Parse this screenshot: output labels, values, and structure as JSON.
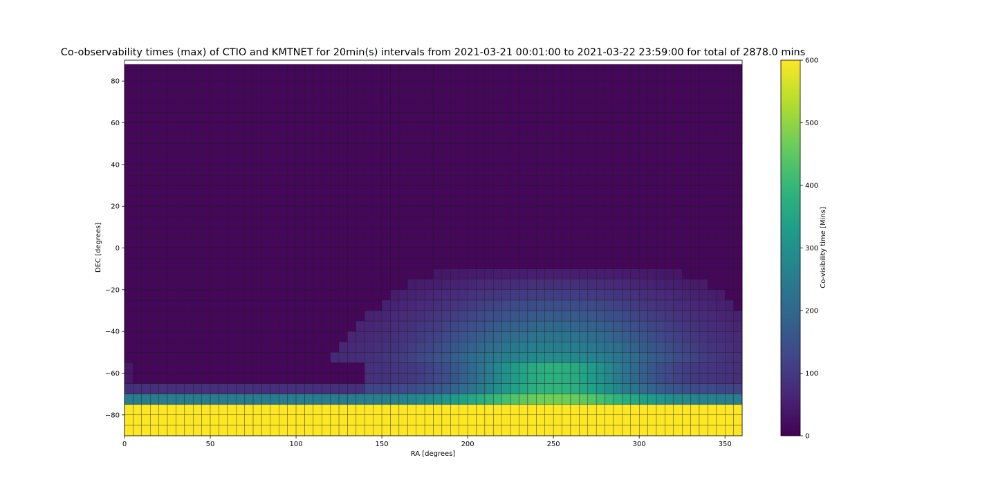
{
  "chart_data": {
    "type": "heatmap",
    "title": "Co-observability times (max) of CTIO and KMTNET for 20min(s) intervals from  2021-03-21 00:01:00  to  2021-03-22 23:59:00  for total of 2878.0 mins",
    "xlabel": "RA [degrees]",
    "ylabel": "DEC [degrees]",
    "colorbar_label": "Co-visibility time [Mins]",
    "colormap": "viridis",
    "xlim": [
      0,
      360
    ],
    "ylim": [
      -90,
      90
    ],
    "xticks": [
      0,
      50,
      100,
      150,
      200,
      250,
      300,
      350
    ],
    "yticks": [
      -80,
      -60,
      -40,
      -20,
      0,
      20,
      40,
      60,
      80
    ],
    "xtick_labels": [
      "0",
      "50",
      "100",
      "150",
      "200",
      "250",
      "300",
      "350"
    ],
    "ytick_labels": [
      "−80",
      "−60",
      "−40",
      "−20",
      "0",
      "20",
      "40",
      "60",
      "80"
    ],
    "colorbar_range": [
      0,
      600
    ],
    "colorbar_ticks": [
      0,
      100,
      200,
      300,
      400,
      500,
      600
    ],
    "colorbar_tick_labels": [
      "0",
      "100",
      "200",
      "300",
      "400",
      "500",
      "600"
    ],
    "grid": true,
    "ra_bin_width": 5,
    "dec_bin_width": 5,
    "dec_data_max": 88,
    "cells_description_rows": [
      {
        "dec_range": [
          -90,
          -77
        ],
        "ra_range": [
          0,
          360
        ],
        "value": 600
      },
      {
        "dec_range": [
          -77,
          -72
        ],
        "ra_range": [
          0,
          360
        ],
        "value_profile": "base 250, rising to 470 near RA 250"
      },
      {
        "dec_range": [
          -72,
          -57
        ],
        "ra_range": [
          0,
          360
        ],
        "value_profile": "base 80 for RA<140, rising to 390 near RA 250"
      },
      {
        "dec_range": [
          -57,
          -8
        ],
        "ra_range": [
          140,
          335
        ],
        "value_profile": "dome: 20 at edges, up to 300 near RA 250, DEC -60"
      },
      {
        "dec_range": [
          -90,
          88
        ],
        "ra_range": [
          0,
          360
        ],
        "value": 10,
        "note": "background"
      }
    ]
  }
}
